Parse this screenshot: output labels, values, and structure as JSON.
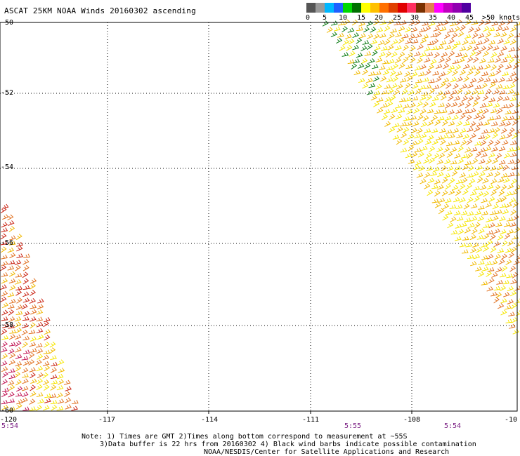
{
  "title": "ASCAT 25KM NOAA Winds 20160302 ascending",
  "colorbar": {
    "swatches": [
      "#555555",
      "#9a9a9a",
      "#00b7ff",
      "#2060ff",
      "#00d800",
      "#007000",
      "#ffff00",
      "#ffc000",
      "#ff7000",
      "#e04000",
      "#e00000",
      "#ff3060",
      "#7a3000",
      "#e08050",
      "#ff00ff",
      "#c000c0",
      "#9000b0",
      "#5000a0"
    ],
    "labels": [
      "0",
      "5",
      "10",
      "15",
      "20",
      "25",
      "30",
      "35",
      "40",
      "45",
      ">50 knots"
    ]
  },
  "axes": {
    "lat_ticks": [
      "-50",
      "-52",
      "-54",
      "-56",
      "-58",
      "-60"
    ],
    "lon_ticks": [
      "-120",
      "-117",
      "-114",
      "-111",
      "-108",
      "-10"
    ],
    "grid": "dotted"
  },
  "pass_times": [
    "5:54",
    "5:55",
    "5:54"
  ],
  "footer": {
    "line1": "Note: 1) Times are GMT 2)Times along bottom correspond to measurement at ~55S",
    "line2": "3)Data buffer is 22 hrs from 20160302 4) Black wind barbs indicate possible contamination",
    "line3": "NOAA/NESDIS/Center for Satellite Applications and Research"
  },
  "barb_colors": {
    "green": "#0a7a12",
    "yellow": "#f6e600",
    "gold": "#f0b800",
    "orange": "#e07020",
    "red": "#c82010",
    "magenta": "#c01050"
  }
}
